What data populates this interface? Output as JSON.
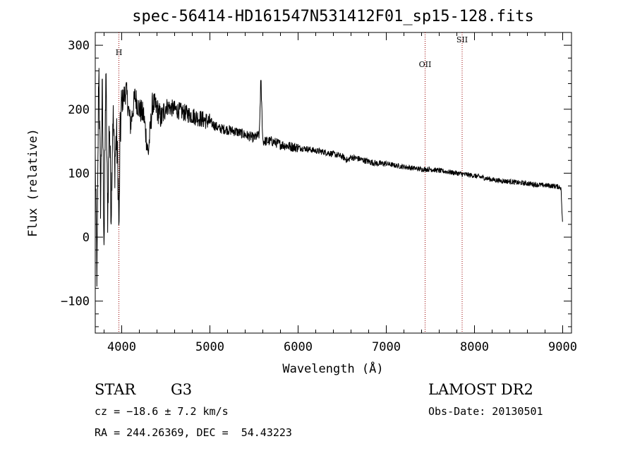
{
  "chart_data": {
    "type": "line",
    "title": "spec-56414-HD161547N531412F01_sp15-128.fits",
    "xlabel": "Wavelength (Å)",
    "ylabel": "Flux (relative)",
    "xlim": [
      3700,
      9100
    ],
    "ylim": [
      -150,
      320
    ],
    "x_ticks": [
      4000,
      5000,
      6000,
      7000,
      8000,
      9000
    ],
    "y_ticks": [
      -100,
      0,
      100,
      200,
      300
    ],
    "grid": false,
    "series": [
      {
        "x": [
          3700,
          3720,
          3740,
          3760,
          3780,
          3800,
          3820,
          3840,
          3860,
          3880,
          3900,
          3920,
          3940,
          3960,
          3970,
          3980,
          4000,
          4050,
          4100,
          4150,
          4200,
          4250,
          4300,
          4350,
          4400,
          4450,
          4500,
          4600,
          4700,
          4800,
          4900,
          5000,
          5100,
          5200,
          5300,
          5400,
          5500,
          5560,
          5578,
          5600,
          5700,
          5800,
          5900,
          6000,
          6100,
          6200,
          6300,
          6400,
          6500,
          6563,
          6600,
          6700,
          6800,
          6900,
          7000,
          7100,
          7200,
          7300,
          7400,
          7500,
          7600,
          7700,
          7800,
          7900,
          8000,
          8100,
          8200,
          8300,
          8400,
          8500,
          8600,
          8700,
          8800,
          8900,
          8980,
          9000
        ],
        "y": [
          120,
          -70,
          280,
          60,
          230,
          -10,
          260,
          30,
          190,
          40,
          200,
          110,
          160,
          90,
          0,
          150,
          210,
          230,
          175,
          220,
          200,
          190,
          130,
          210,
          200,
          185,
          205,
          200,
          195,
          190,
          185,
          180,
          170,
          168,
          165,
          160,
          155,
          160,
          245,
          150,
          150,
          145,
          142,
          140,
          138,
          135,
          133,
          130,
          126,
          120,
          125,
          122,
          118,
          115,
          115,
          112,
          110,
          108,
          106,
          106,
          104,
          102,
          100,
          98,
          96,
          93,
          90,
          88,
          87,
          85,
          84,
          82,
          81,
          80,
          78,
          15
        ]
      }
    ],
    "spectral_lines": [
      {
        "label": "H",
        "x": 3968
      },
      {
        "label": "OII",
        "x": 7440
      },
      {
        "label": "SII",
        "x": 7860
      }
    ],
    "line_color": "#000000",
    "marker_color": "#990000"
  },
  "info": {
    "object_class": "STAR",
    "subclass": "G3",
    "redshift": "cz = −18.6 ± 7.2 km/s",
    "coords": "RA = 244.26369, DEC =  54.43223",
    "survey": "LAMOST DR2",
    "obs_date": "Obs-Date: 20130501"
  }
}
